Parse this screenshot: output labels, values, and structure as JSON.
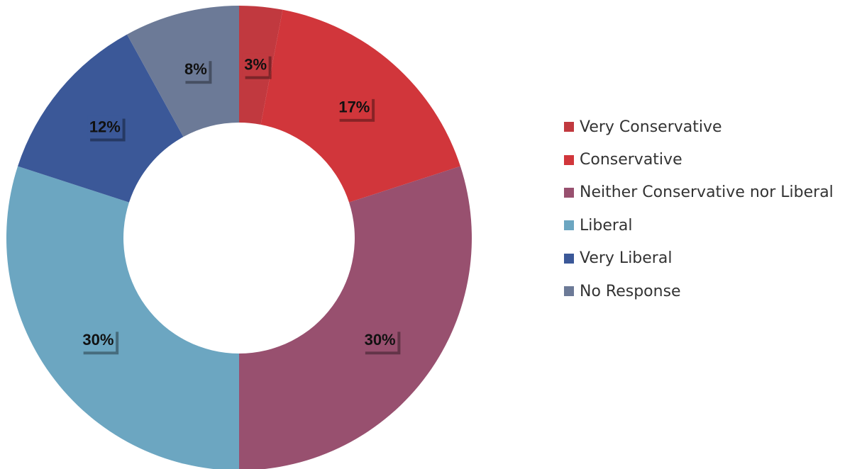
{
  "chart_data": {
    "type": "pie",
    "donut": true,
    "start_angle_deg": 0,
    "direction": "clockwise",
    "legend_position": "right",
    "data_labels": "value-percent",
    "slices": [
      {
        "label": "Very Conservative",
        "value": 3,
        "value_label": "3%",
        "color": "#C1393F"
      },
      {
        "label": "Conservative",
        "value": 17,
        "value_label": "17%",
        "color": "#D1363B"
      },
      {
        "label": "Neither Conservative nor Liberal",
        "value": 30,
        "value_label": "30%",
        "color": "#98506F"
      },
      {
        "label": "Liberal",
        "value": 30,
        "value_label": "30%",
        "color": "#6CA6C1"
      },
      {
        "label": "Very Liberal",
        "value": 12,
        "value_label": "12%",
        "color": "#3B5898"
      },
      {
        "label": "No Response",
        "value": 8,
        "value_label": "8%",
        "color": "#6C7A97"
      }
    ]
  }
}
